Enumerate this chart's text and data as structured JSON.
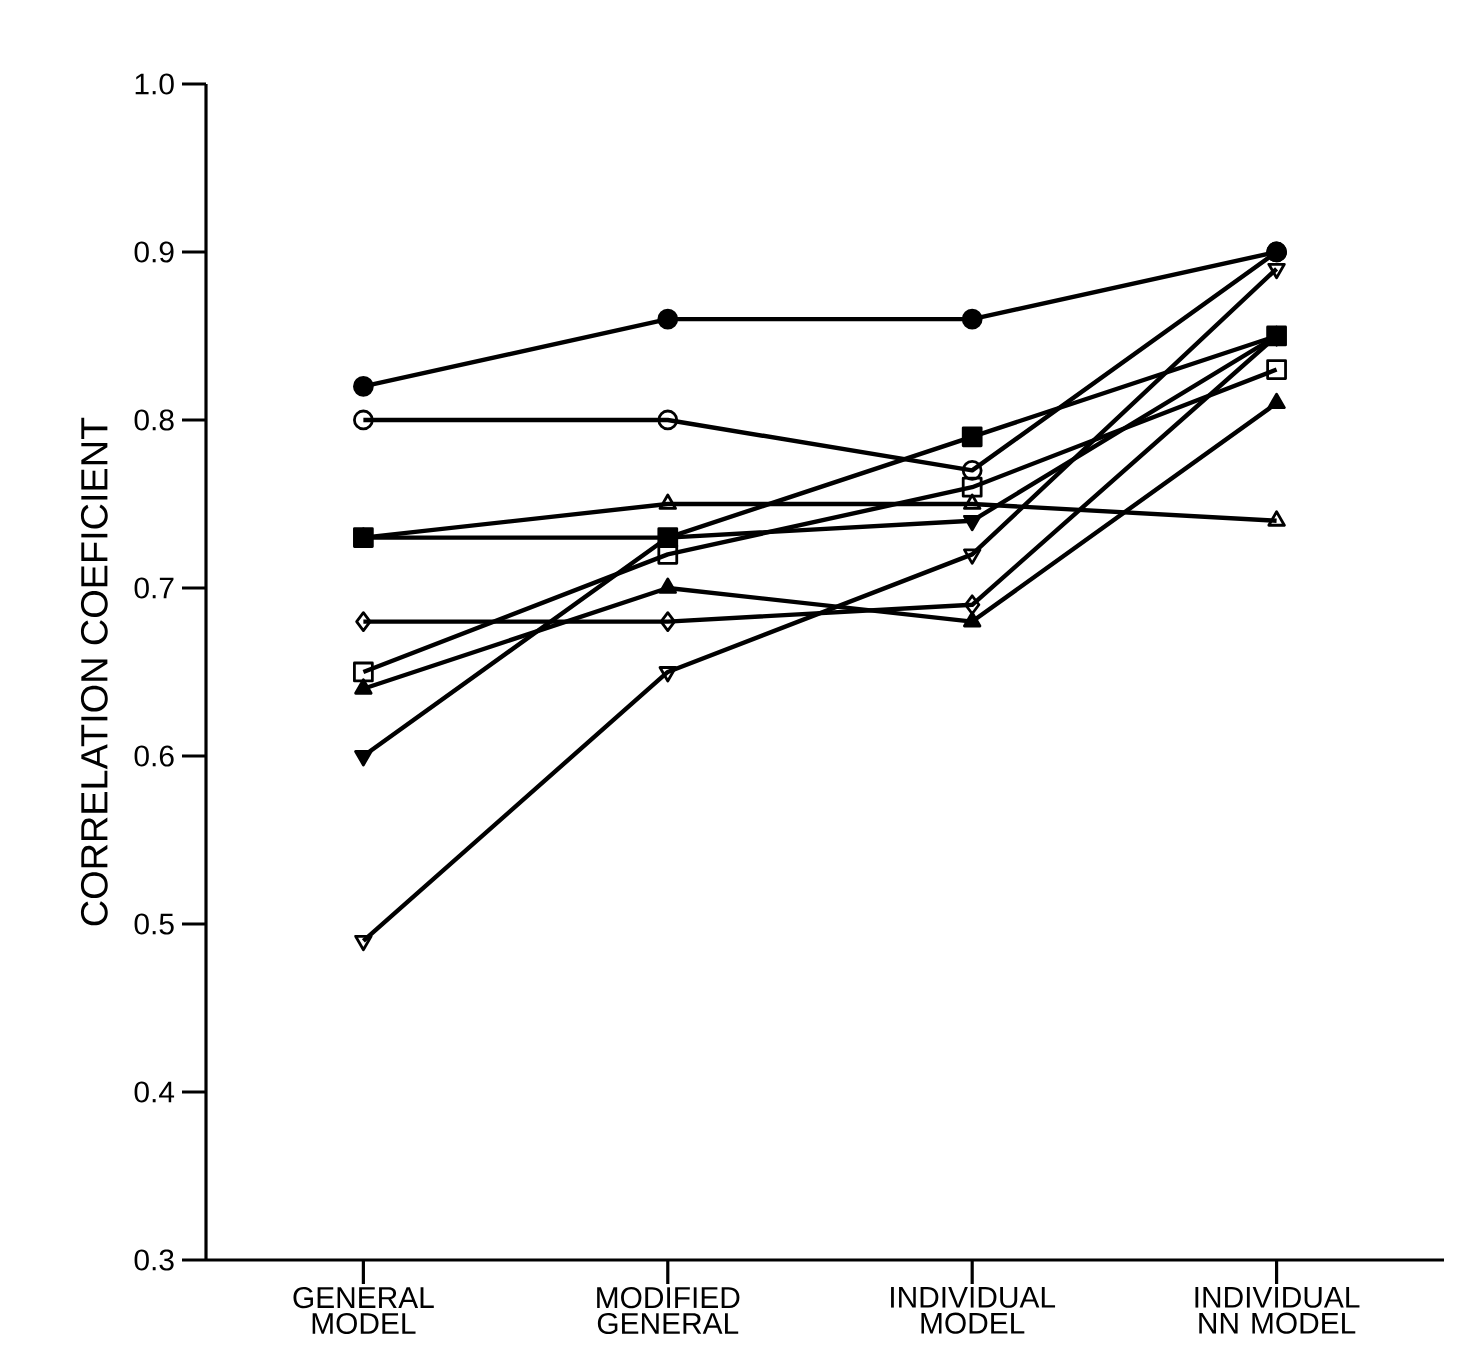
{
  "chart_data": {
    "type": "line",
    "ylabel": "CORRELATION COEFICIENT",
    "categories": [
      "GENERAL MODEL",
      "MODIFIED GENERAL",
      "INDIVIDUAL MODEL",
      "INDIVIDUAL NN MODEL"
    ],
    "ylim": [
      0.3,
      1.0
    ],
    "yticks": [
      {
        "value": 0.3,
        "label": "0.3"
      },
      {
        "value": 0.4,
        "label": "0.4"
      },
      {
        "value": 0.5,
        "label": "0.5"
      },
      {
        "value": 0.6,
        "label": "0.6"
      },
      {
        "value": 0.7,
        "label": "0.7"
      },
      {
        "value": 0.8,
        "label": "0.8"
      },
      {
        "value": 0.9,
        "label": "0.9"
      },
      {
        "value": 1.0,
        "label": "1.0"
      }
    ],
    "line_style": "solid",
    "series": [
      {
        "color": "#000000",
        "marker": "circle",
        "values": [
          0.82,
          0.86,
          0.86,
          0.9
        ]
      },
      {
        "color": "#000000",
        "marker": "circle",
        "values": [
          0.8,
          0.8,
          0.77,
          0.9
        ]
      },
      {
        "color": "#000000",
        "marker": "triangle",
        "values": [
          0.73,
          0.75,
          0.75,
          0.74
        ]
      },
      {
        "color": "#000000",
        "marker": "square",
        "values": [
          0.73,
          0.73,
          0.79,
          0.85
        ]
      },
      {
        "color": "#000000",
        "marker": "square",
        "values": [
          0.65,
          0.72,
          0.76,
          0.83
        ]
      },
      {
        "color": "#000000",
        "marker": "triangle",
        "values": [
          0.64,
          0.7,
          0.68,
          0.81
        ]
      },
      {
        "color": "#000000",
        "marker": "diamond",
        "values": [
          0.68,
          0.68,
          0.69,
          0.85
        ]
      },
      {
        "color": "#000000",
        "marker": "triangle",
        "values": [
          0.6,
          0.73,
          0.74,
          0.85
        ]
      },
      {
        "color": "#000000",
        "marker": "triangle",
        "values": [
          0.49,
          0.65,
          0.72,
          0.89
        ]
      }
    ]
  }
}
